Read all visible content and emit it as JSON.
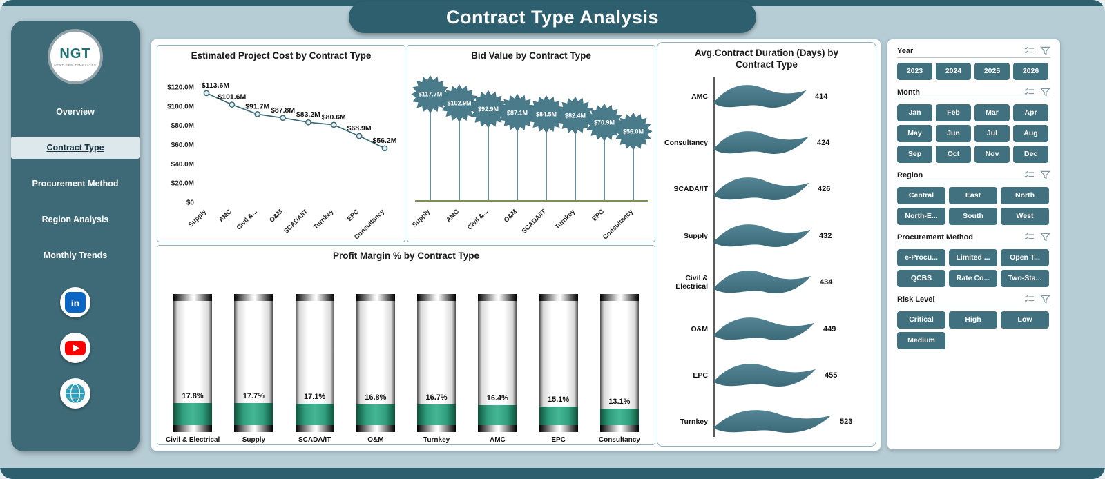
{
  "header": {
    "title": "Contract Type Analysis"
  },
  "sidebar": {
    "logo": {
      "text": "NGT",
      "subtext": "NEXT GEN TEMPLATES"
    },
    "items": [
      {
        "label": "Overview",
        "active": false
      },
      {
        "label": "Contract Type",
        "active": true
      },
      {
        "label": "Procurement Method",
        "active": false
      },
      {
        "label": "Region Analysis",
        "active": false
      },
      {
        "label": "Monthly Trends",
        "active": false
      }
    ],
    "social_icons": [
      "linkedin-icon",
      "youtube-icon",
      "globe-icon"
    ]
  },
  "filters": [
    {
      "title": "Year",
      "button_width": 51,
      "options": [
        "2023",
        "2024",
        "2025",
        "2026"
      ]
    },
    {
      "title": "Month",
      "button_width": 51,
      "options": [
        "Jan",
        "Feb",
        "Mar",
        "Apr",
        "May",
        "Jun",
        "Jul",
        "Aug",
        "Sep",
        "Oct",
        "Nov",
        "Dec"
      ]
    },
    {
      "title": "Region",
      "button_width": 70,
      "options": [
        "Central",
        "East",
        "North",
        "North-E...",
        "South",
        "West"
      ]
    },
    {
      "title": "Procurement Method",
      "button_width": 70,
      "options": [
        "e-Procu...",
        "Limited ...",
        "Open T...",
        "QCBS",
        "Rate Co...",
        "Two-Sta..."
      ]
    },
    {
      "title": "Risk Level",
      "button_width": 70,
      "options": [
        "Critical",
        "High",
        "Low",
        "Medium"
      ]
    }
  ],
  "filter_header_icons": [
    "select-all-icon",
    "clear-filter-icon"
  ],
  "chart_data": [
    {
      "type": "line",
      "title": "Estimated Project Cost by Contract Type",
      "categories": [
        "Supply",
        "AMC",
        "Civil &...",
        "O&M",
        "SCADA/IT",
        "Turnkey",
        "EPC",
        "Consultancy"
      ],
      "values": [
        113.6,
        101.6,
        91.7,
        87.8,
        83.2,
        80.6,
        68.9,
        56.2
      ],
      "labels": [
        "$113.6M",
        "$101.6M",
        "$91.7M",
        "$87.8M",
        "$83.2M",
        "$80.6M",
        "$68.9M",
        "$56.2M"
      ],
      "y_ticks": [
        {
          "v": 120,
          "label": "$120.0M"
        },
        {
          "v": 100,
          "label": "$100.0M"
        },
        {
          "v": 80,
          "label": "$80.0M"
        },
        {
          "v": 60,
          "label": "$60.0M"
        },
        {
          "v": 40,
          "label": "$40.0M"
        },
        {
          "v": 20,
          "label": "$20.0M"
        },
        {
          "v": 0,
          "label": "$0"
        }
      ],
      "ylim": [
        0,
        120
      ],
      "legend": "none",
      "grid": false
    },
    {
      "type": "scatter",
      "subtype": "lollipop-starburst",
      "title": "Bid Value by Contract Type",
      "categories": [
        "Supply",
        "AMC",
        "Civil &...",
        "O&M",
        "SCADA/IT",
        "Turnkey",
        "EPC",
        "Consultancy"
      ],
      "values": [
        117.7,
        102.9,
        92.9,
        87.1,
        84.5,
        82.4,
        70.9,
        56.0
      ],
      "labels": [
        "$117.7M",
        "$102.9M",
        "$92.9M",
        "$87.1M",
        "$84.5M",
        "$82.4M",
        "$70.9M",
        "$56.0M"
      ],
      "ylim": [
        0,
        130
      ],
      "legend": "none",
      "grid": false
    },
    {
      "type": "bar",
      "subtype": "cylinder-gauge",
      "title": "Profit Margin % by Contract Type",
      "categories": [
        "Civil & Electrical",
        "Supply",
        "SCADA/IT",
        "O&M",
        "Turnkey",
        "AMC",
        "EPC",
        "Consultancy"
      ],
      "values": [
        17.8,
        17.7,
        17.1,
        16.8,
        16.7,
        16.4,
        15.1,
        13.1
      ],
      "labels": [
        "17.8%",
        "17.7%",
        "17.1%",
        "16.8%",
        "16.7%",
        "16.4%",
        "15.1%",
        "13.1%"
      ],
      "ylim": [
        0,
        100
      ],
      "legend": "none",
      "grid": false
    },
    {
      "type": "bar",
      "subtype": "wave-horizontal",
      "title": "Avg.Contract Duration (Days) by Contract Type",
      "categories": [
        "AMC",
        "Consultancy",
        "SCADA/IT",
        "Supply",
        "Civil & Electrical",
        "O&M",
        "EPC",
        "Turnkey"
      ],
      "values": [
        414,
        424,
        426,
        432,
        434,
        449,
        455,
        523
      ],
      "labels": [
        "414",
        "424",
        "426",
        "432",
        "434",
        "449",
        "455",
        "523"
      ],
      "xlim": [
        0,
        550
      ],
      "legend": "none",
      "grid": false
    }
  ],
  "colors": {
    "accent_teal": "#2d5f6e",
    "sidebar_teal": "#3e6a77",
    "button_teal": "#41707e",
    "profit_green": "#2f9e7d",
    "chart_teal": "#497b8a",
    "line_teal": "#3a6875",
    "baseline_olive": "#7d8f57"
  }
}
